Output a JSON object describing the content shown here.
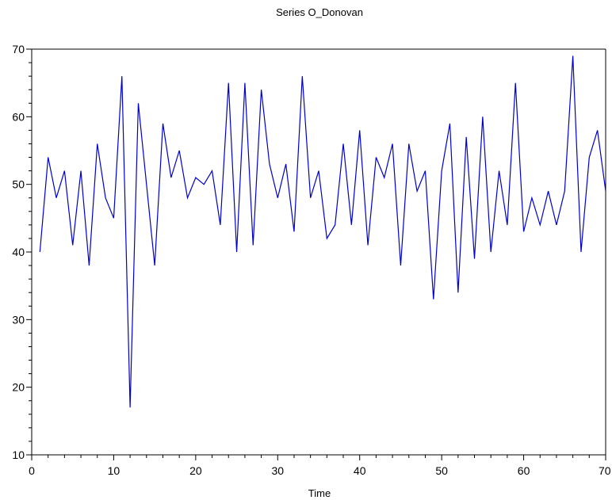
{
  "chart_data": {
    "type": "line",
    "title": "Series O_Donovan",
    "xlabel": "Time",
    "ylabel": "",
    "xlim": [
      0,
      70
    ],
    "ylim": [
      10,
      70
    ],
    "xticks": [
      0,
      10,
      20,
      30,
      40,
      50,
      60,
      70
    ],
    "yticks": [
      10,
      20,
      30,
      40,
      50,
      60,
      70
    ],
    "grid": false,
    "line_color": "#0000cc",
    "series": [
      {
        "x": [
          1,
          2,
          3,
          4,
          5,
          6,
          7,
          8,
          9,
          10,
          11,
          12,
          13,
          14,
          15,
          16,
          17,
          18,
          19,
          20,
          21,
          22,
          23,
          24,
          25,
          26,
          27,
          28,
          29,
          30,
          31,
          32,
          33,
          34,
          35,
          36,
          37,
          38,
          39,
          40,
          41,
          42,
          43,
          44,
          45,
          46,
          47,
          48,
          49,
          50,
          51,
          52,
          53,
          54,
          55,
          56,
          57,
          58,
          59,
          60,
          61,
          62,
          63,
          64,
          65,
          66,
          67,
          68,
          69,
          70
        ],
        "values": [
          40,
          54,
          48,
          52,
          41,
          52,
          38,
          56,
          48,
          45,
          66,
          17,
          62,
          50,
          38,
          59,
          51,
          55,
          48,
          51,
          50,
          52,
          44,
          65,
          40,
          65,
          41,
          64,
          53,
          48,
          53,
          43,
          66,
          48,
          52,
          42,
          44,
          56,
          44,
          58,
          41,
          54,
          51,
          56,
          38,
          56,
          49,
          52,
          33,
          52,
          59,
          34,
          57,
          39,
          60,
          40,
          52,
          44,
          65,
          43,
          48,
          44,
          49,
          44,
          49,
          69,
          40,
          54,
          58,
          49
        ]
      }
    ]
  }
}
